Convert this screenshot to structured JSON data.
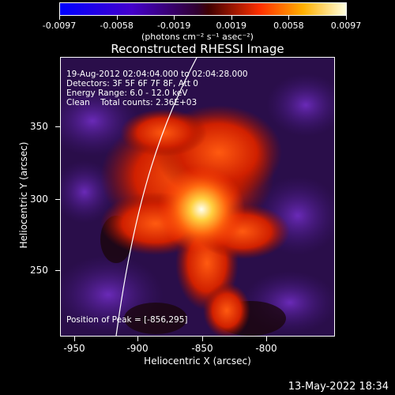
{
  "colorbar": {
    "tick_labels": [
      "-0.0097",
      "-0.0058",
      "-0.0019",
      "0.0019",
      "0.0058",
      "0.0097"
    ],
    "units": "(photons cm⁻² s⁻¹ asec⁻²)"
  },
  "plot": {
    "title": "Reconstructed RHESSI Image",
    "annotations": {
      "time_range": "19-Aug-2012 02:04:04.000 to 02:04:28.000",
      "detectors": "Detectors: 3F 5F 6F 7F 8F, Att 0",
      "energy_range": "Energy Range: 6.0 - 12.0 keV",
      "clean_counts": "Clean    Total counts: 2.36E+03",
      "peak_position": "Position of Peak = [-856,295]"
    },
    "x_axis": {
      "title": "Heliocentric X (arcsec)",
      "tick_labels": [
        "-950",
        "-900",
        "-850",
        "-800"
      ]
    },
    "y_axis": {
      "title": "Heliocentric Y (arcsec)",
      "tick_labels": [
        "350",
        "300",
        "250"
      ]
    }
  },
  "date_stamp": "13-May-2022 18:34"
}
